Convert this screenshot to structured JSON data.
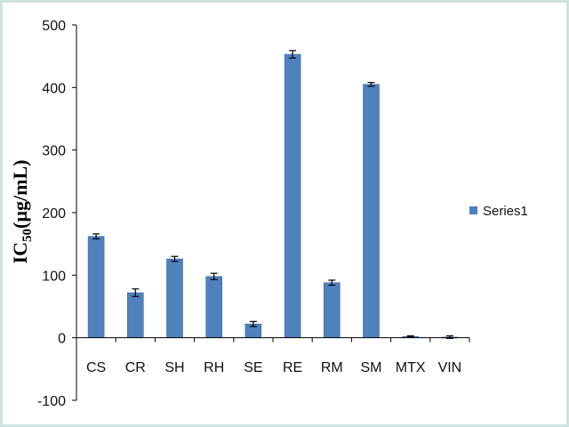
{
  "chart_data": {
    "type": "bar",
    "categories": [
      "CS",
      "CR",
      "SH",
      "RH",
      "SE",
      "RE",
      "RM",
      "SM",
      "MTX",
      "VIN"
    ],
    "series": [
      {
        "name": "Series1",
        "values": [
          162,
          72,
          126,
          98,
          22,
          453,
          88,
          405,
          2,
          1
        ],
        "errors": [
          4,
          6,
          4,
          5,
          4,
          6,
          4,
          3,
          1,
          2
        ]
      }
    ],
    "title": "",
    "xlabel": "",
    "ylabel": "IC50(µg/mL)",
    "ylabel_main": "IC",
    "ylabel_sub": "50",
    "ylabel_rest": "(µg/mL)",
    "ylim": [
      -100,
      500
    ],
    "yticks": [
      -100,
      0,
      100,
      200,
      300,
      400,
      500
    ],
    "grid": false,
    "legend_position": "right",
    "colors": {
      "bar": "#4f81bd",
      "bar_edge": "#3a6aa3",
      "error": "#000000",
      "axis": "#000000",
      "frame": "#cfe3e0"
    }
  }
}
